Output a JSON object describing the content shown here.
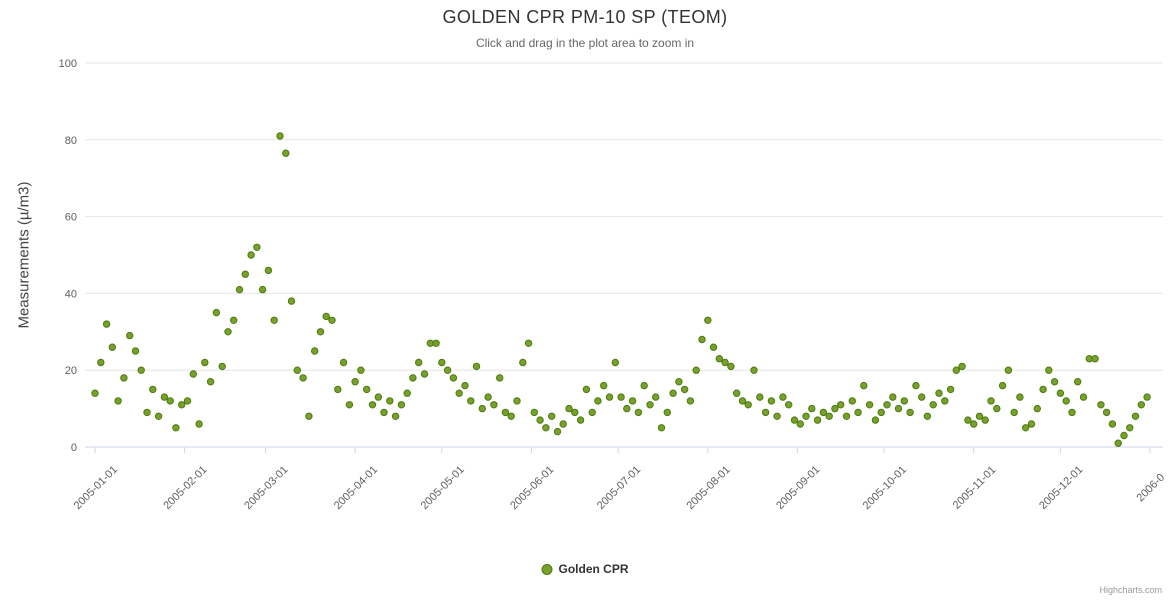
{
  "chart_data": {
    "type": "scatter",
    "title": "GOLDEN CPR PM-10 SP (TEOM)",
    "subtitle": "Click and drag in the plot area to zoom in",
    "ylabel": "Measurements (µ/m3)",
    "ylim": [
      0,
      100
    ],
    "y_ticks": [
      0,
      20,
      40,
      60,
      80,
      100
    ],
    "grid": true,
    "legend_position": "bottom-center",
    "x_axis": {
      "type": "datetime",
      "start_date": "2005-01-01",
      "sample_interval_days": 2,
      "tick_labels": [
        "2005-01-01",
        "2005-02-01",
        "2005-03-01",
        "2005-04-01",
        "2005-05-01",
        "2005-06-01",
        "2005-07-01",
        "2005-08-01",
        "2005-09-01",
        "2005-10-01",
        "2005-11-01",
        "2005-12-01",
        "2006-0"
      ],
      "tick_day_offsets": [
        0,
        31,
        59,
        90,
        120,
        151,
        181,
        212,
        243,
        273,
        304,
        334,
        365
      ]
    },
    "series": [
      {
        "name": "Golden CPR",
        "color": "#76A22A",
        "marker_line_color": "#4E7914",
        "values": [
          14,
          22,
          32,
          26,
          12,
          18,
          29,
          25,
          20,
          9,
          15,
          8,
          13,
          12,
          5,
          11,
          12,
          19,
          6,
          22,
          17,
          35,
          21,
          30,
          33,
          41,
          45,
          50,
          52,
          41,
          46,
          33,
          81,
          76.5,
          38,
          20,
          18,
          8,
          25,
          30,
          34,
          33,
          15,
          22,
          11,
          17,
          20,
          15,
          11,
          13,
          9,
          12,
          8,
          11,
          14,
          18,
          22,
          19,
          27,
          27,
          22,
          20,
          18,
          14,
          16,
          12,
          21,
          10,
          13,
          11,
          18,
          9,
          8,
          12,
          22,
          27,
          9,
          7,
          5,
          8,
          4,
          6,
          10,
          9,
          7,
          15,
          9,
          12,
          16,
          13,
          22,
          13,
          10,
          12,
          9,
          16,
          11,
          13,
          5,
          9,
          14,
          17,
          15,
          12,
          20,
          28,
          33,
          26,
          23,
          22,
          21,
          14,
          12,
          11,
          20,
          13,
          9,
          12,
          8,
          13,
          11,
          7,
          6,
          8,
          10,
          7,
          9,
          8,
          10,
          11,
          8,
          12,
          9,
          16,
          11,
          7,
          9,
          11,
          13,
          10,
          12,
          9,
          16,
          13,
          8,
          11,
          14,
          12,
          15,
          20,
          21,
          7,
          6,
          8,
          7,
          12,
          10,
          16,
          20,
          9,
          13,
          5,
          6,
          10,
          15,
          20,
          17,
          14,
          12,
          9,
          17,
          13,
          23,
          23,
          11,
          9,
          6,
          1,
          3,
          5,
          8,
          11,
          13
        ]
      }
    ]
  },
  "colors": {
    "grid_line": "#e6e6e6",
    "axis_line": "#ccd6eb",
    "tick_label": "#606060",
    "title": "#333333",
    "subtitle": "#666666"
  },
  "credits": {
    "label": "Highcharts.com"
  }
}
